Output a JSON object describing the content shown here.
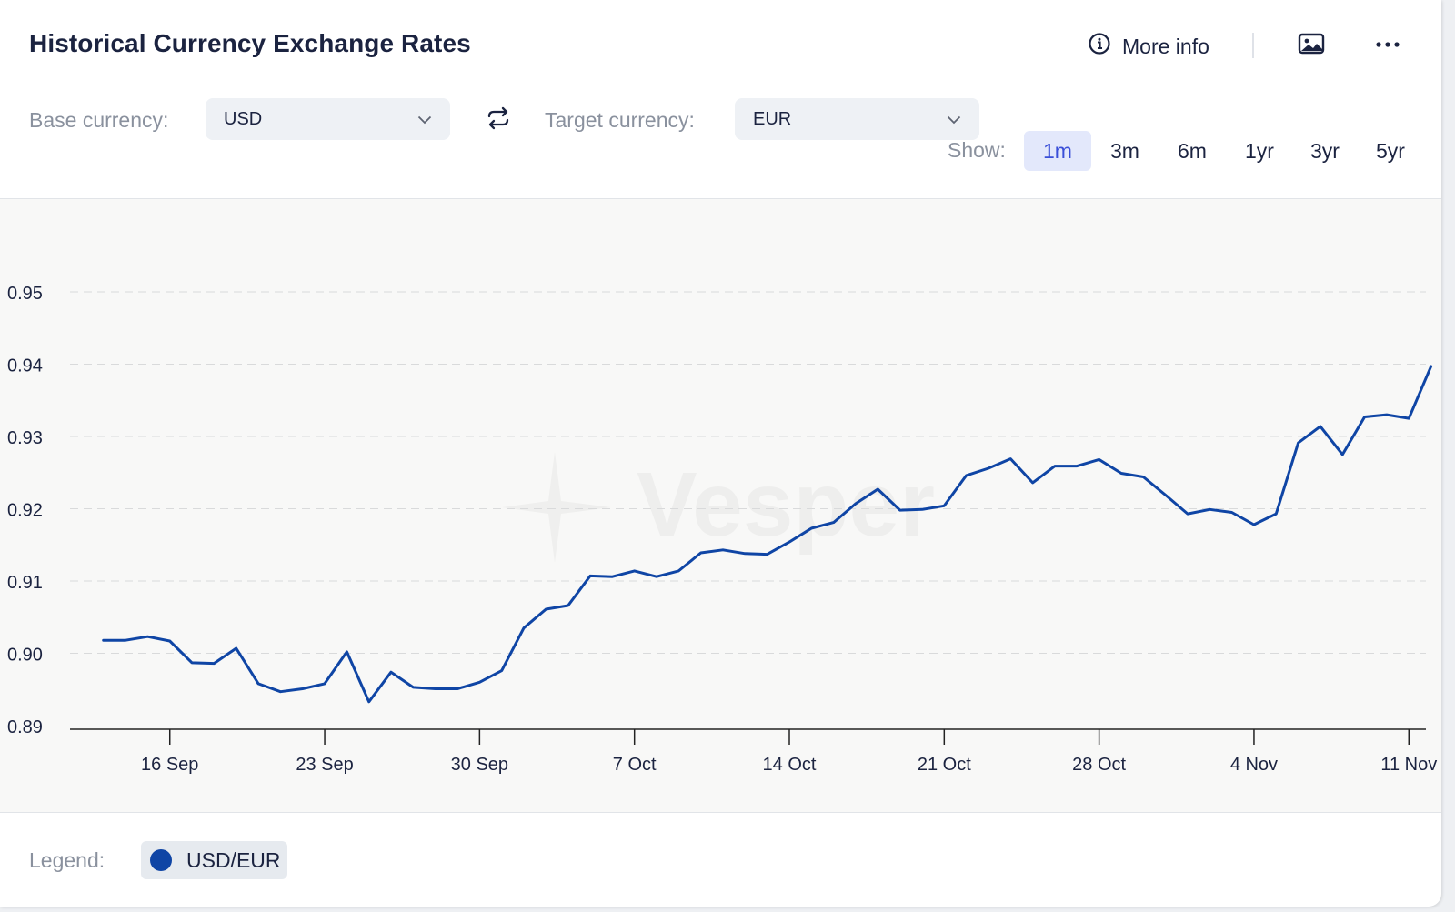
{
  "header": {
    "title": "Historical Currency Exchange Rates",
    "more_info_label": "More info",
    "icons": {
      "info": "info-circle-icon",
      "image": "image-icon",
      "more": "more-horizontal-icon"
    }
  },
  "controls": {
    "base_label": "Base currency:",
    "base_value": "USD",
    "target_label": "Target currency:",
    "target_value": "EUR",
    "swap_icon": "swap-arrows-icon",
    "show_label": "Show:",
    "ranges": [
      {
        "label": "1m",
        "active": true
      },
      {
        "label": "3m",
        "active": false
      },
      {
        "label": "6m",
        "active": false
      },
      {
        "label": "1yr",
        "active": false
      },
      {
        "label": "3yr",
        "active": false
      },
      {
        "label": "5yr",
        "active": false
      }
    ]
  },
  "watermark": "Vesper",
  "legend": {
    "label": "Legend:",
    "series_label": "USD/EUR"
  },
  "colors": {
    "series": "#0f45a5",
    "active_range_bg": "#e3e8fb",
    "active_range_text": "#3a4fd8"
  },
  "chart_data": {
    "type": "line",
    "title": "",
    "xlabel": "",
    "ylabel": "",
    "ylim": [
      0.89,
      0.955
    ],
    "yticks": [
      0.89,
      0.9,
      0.91,
      0.92,
      0.93,
      0.94,
      0.95
    ],
    "ytick_labels": [
      "0.89",
      "0.90",
      "0.91",
      "0.92",
      "0.93",
      "0.94",
      "0.95"
    ],
    "xlim": [
      "2024-09-12",
      "2024-11-12"
    ],
    "xticks": [
      "2024-09-16",
      "2024-09-23",
      "2024-09-30",
      "2024-10-07",
      "2024-10-14",
      "2024-10-21",
      "2024-10-28",
      "2024-11-04",
      "2024-11-11"
    ],
    "xtick_labels": [
      "16 Sep",
      "23 Sep",
      "30 Sep",
      "7 Oct",
      "14 Oct",
      "21 Oct",
      "28 Oct",
      "4 Nov",
      "11 Nov"
    ],
    "grid": true,
    "series": [
      {
        "name": "USD/EUR",
        "x": [
          "2024-09-13",
          "2024-09-14",
          "2024-09-15",
          "2024-09-16",
          "2024-09-17",
          "2024-09-18",
          "2024-09-19",
          "2024-09-20",
          "2024-09-21",
          "2024-09-22",
          "2024-09-23",
          "2024-09-24",
          "2024-09-25",
          "2024-09-26",
          "2024-09-27",
          "2024-09-28",
          "2024-09-29",
          "2024-09-30",
          "2024-10-01",
          "2024-10-02",
          "2024-10-03",
          "2024-10-04",
          "2024-10-05",
          "2024-10-06",
          "2024-10-07",
          "2024-10-08",
          "2024-10-09",
          "2024-10-10",
          "2024-10-11",
          "2024-10-12",
          "2024-10-13",
          "2024-10-14",
          "2024-10-15",
          "2024-10-16",
          "2024-10-17",
          "2024-10-18",
          "2024-10-19",
          "2024-10-20",
          "2024-10-21",
          "2024-10-22",
          "2024-10-23",
          "2024-10-24",
          "2024-10-25",
          "2024-10-26",
          "2024-10-27",
          "2024-10-28",
          "2024-10-29",
          "2024-10-30",
          "2024-10-31",
          "2024-11-01",
          "2024-11-02",
          "2024-11-03",
          "2024-11-04",
          "2024-11-05",
          "2024-11-06",
          "2024-11-07",
          "2024-11-08",
          "2024-11-09",
          "2024-11-10",
          "2024-11-11",
          "2024-11-12"
        ],
        "values": [
          0.9018,
          0.9018,
          0.9023,
          0.9017,
          0.8987,
          0.8986,
          0.9007,
          0.8958,
          0.8947,
          0.8951,
          0.8958,
          0.9002,
          0.8933,
          0.8974,
          0.8953,
          0.8951,
          0.8951,
          0.896,
          0.8976,
          0.9035,
          0.9061,
          0.9066,
          0.9107,
          0.9106,
          0.9114,
          0.9106,
          0.9114,
          0.9139,
          0.9143,
          0.9138,
          0.9137,
          0.9154,
          0.9173,
          0.9181,
          0.9207,
          0.9227,
          0.9198,
          0.9199,
          0.9204,
          0.9246,
          0.9256,
          0.9269,
          0.9236,
          0.9259,
          0.9259,
          0.9268,
          0.9249,
          0.9244,
          0.9219,
          0.9193,
          0.9199,
          0.9195,
          0.9178,
          0.9193,
          0.9291,
          0.9314,
          0.9275,
          0.9327,
          0.933,
          0.9325,
          0.9397
        ]
      }
    ]
  }
}
